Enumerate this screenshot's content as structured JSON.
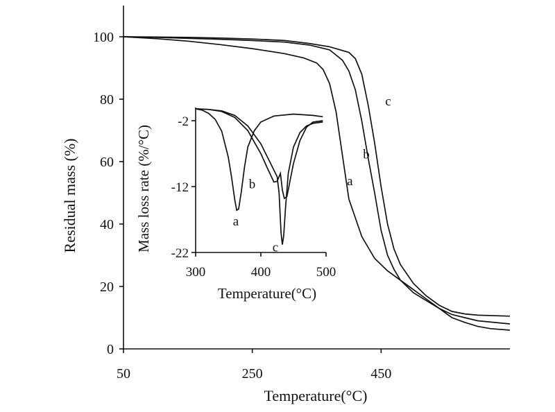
{
  "chart_data": [
    {
      "type": "line",
      "xlabel": "Temperature(°C)",
      "ylabel": "Residual mass (%)",
      "xlim": [
        50,
        650
      ],
      "ylim": [
        0,
        110
      ],
      "x_ticks": [
        50,
        250,
        450
      ],
      "y_ticks": [
        0,
        20,
        40,
        60,
        80,
        100
      ],
      "grid": false,
      "series": [
        {
          "name": "a",
          "x": [
            50,
            100,
            150,
            200,
            250,
            300,
            330,
            350,
            360,
            370,
            380,
            390,
            400,
            420,
            440,
            460,
            480,
            500,
            520,
            540,
            560,
            580,
            600,
            620,
            650
          ],
          "y": [
            100,
            99.4,
            98.6,
            97.5,
            96.2,
            94.6,
            93.2,
            91.6,
            89.5,
            85,
            76,
            62,
            48,
            36,
            29,
            25,
            22,
            19,
            16,
            13,
            10,
            8.5,
            7.2,
            6.5,
            6
          ]
        },
        {
          "name": "b",
          "x": [
            50,
            100,
            150,
            200,
            250,
            300,
            340,
            370,
            390,
            400,
            410,
            420,
            430,
            440,
            450,
            460,
            470,
            480,
            500,
            520,
            540,
            560,
            580,
            600,
            650
          ],
          "y": [
            100,
            99.8,
            99.5,
            99.2,
            98.8,
            98.3,
            97.3,
            95.8,
            92.5,
            89,
            83,
            73,
            61,
            50,
            38,
            30,
            25.5,
            22,
            18,
            15.5,
            13,
            11,
            10,
            9,
            8
          ]
        },
        {
          "name": "c",
          "x": [
            50,
            100,
            150,
            200,
            250,
            300,
            340,
            370,
            400,
            410,
            420,
            430,
            440,
            450,
            460,
            470,
            480,
            500,
            520,
            540,
            560,
            580,
            600,
            650
          ],
          "y": [
            100,
            99.9,
            99.8,
            99.6,
            99.3,
            98.8,
            97.8,
            96.8,
            95,
            93,
            88,
            78,
            66,
            52,
            40,
            32,
            27,
            21,
            17,
            14,
            12,
            11.2,
            10.8,
            10.5
          ]
        }
      ]
    },
    {
      "type": "line",
      "xlabel": "Temperature(°C)",
      "ylabel": "Mass loss rate (%/°C)",
      "xlim": [
        300,
        500
      ],
      "ylim": [
        -22,
        0
      ],
      "x_ticks": [
        300,
        400,
        500
      ],
      "y_ticks": [
        -2,
        -12,
        -22
      ],
      "grid": false,
      "series": [
        {
          "name": "a",
          "x": [
            300,
            310,
            320,
            330,
            340,
            350,
            355,
            360,
            363,
            366,
            370,
            375,
            380,
            390,
            400,
            420,
            450,
            480,
            495
          ],
          "y": [
            -0.2,
            -0.4,
            -0.9,
            -1.8,
            -3.6,
            -7.5,
            -10.5,
            -14,
            -15.6,
            -15.4,
            -12.8,
            -9,
            -6,
            -3.5,
            -2.2,
            -1.3,
            -1.0,
            -1.2,
            -1.4
          ]
        },
        {
          "name": "b",
          "x": [
            300,
            320,
            340,
            360,
            380,
            400,
            410,
            420,
            425,
            430,
            433,
            436,
            440,
            445,
            450,
            460,
            470,
            480,
            495
          ],
          "y": [
            -0.2,
            -0.3,
            -0.6,
            -1.5,
            -3.5,
            -7,
            -9.2,
            -11.3,
            -11.2,
            -10,
            -12.5,
            -13.8,
            -13.5,
            -11,
            -8.5,
            -5,
            -3,
            -2.2,
            -2.0
          ]
        },
        {
          "name": "c",
          "x": [
            300,
            320,
            340,
            360,
            380,
            400,
            410,
            420,
            425,
            428,
            431,
            433,
            435,
            438,
            442,
            450,
            460,
            470,
            480,
            495
          ],
          "y": [
            -0.2,
            -0.3,
            -0.5,
            -1.2,
            -2.8,
            -5.5,
            -7.5,
            -9.5,
            -10.5,
            -13,
            -19,
            -20.8,
            -19.5,
            -15,
            -10,
            -6,
            -3.8,
            -2.8,
            -2.4,
            -2.2
          ]
        }
      ]
    }
  ]
}
